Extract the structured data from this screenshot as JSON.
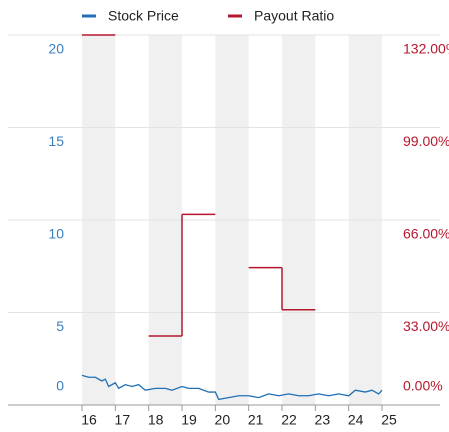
{
  "chart_data": {
    "type": "line",
    "xlim": [
      16,
      25
    ],
    "xticks": [
      16,
      17,
      18,
      19,
      20,
      21,
      22,
      23,
      24,
      25
    ],
    "ylim": [
      0,
      20
    ],
    "yticks": [
      20,
      15,
      10,
      5,
      0
    ],
    "y2lim": [
      0,
      132
    ],
    "y2ticks": [
      {
        "value": 132,
        "label": "132.00%"
      },
      {
        "value": 99,
        "label": "99.00%"
      },
      {
        "value": 66,
        "label": "66.00%"
      },
      {
        "value": 33,
        "label": "33.00%"
      },
      {
        "value": 0,
        "label": "0.00%"
      }
    ],
    "grid": true,
    "legend": "top",
    "series": [
      {
        "name": "Stock Price",
        "color": "#1f6fb4",
        "x": [
          16.0,
          16.2,
          16.4,
          16.6,
          16.7,
          16.8,
          17.0,
          17.1,
          17.3,
          17.5,
          17.7,
          17.9,
          18.2,
          18.5,
          18.7,
          19.0,
          19.2,
          19.5,
          19.8,
          20.0,
          20.1,
          20.4,
          20.7,
          21.0,
          21.3,
          21.6,
          21.9,
          22.2,
          22.5,
          22.8,
          23.1,
          23.4,
          23.7,
          24.0,
          24.2,
          24.5,
          24.7,
          24.9,
          25.0
        ],
        "values": [
          1.6,
          1.5,
          1.5,
          1.3,
          1.4,
          1.0,
          1.2,
          0.9,
          1.1,
          1.0,
          1.1,
          0.8,
          0.9,
          0.9,
          0.8,
          1.0,
          0.9,
          0.9,
          0.7,
          0.7,
          0.3,
          0.4,
          0.5,
          0.5,
          0.4,
          0.6,
          0.5,
          0.6,
          0.5,
          0.5,
          0.6,
          0.5,
          0.6,
          0.5,
          0.8,
          0.7,
          0.8,
          0.6,
          0.8
        ]
      },
      {
        "name": "Payout Ratio",
        "color": "#b5172d",
        "axis": "y2",
        "step": true,
        "x": [
          16,
          17,
          18,
          19,
          20,
          21,
          22,
          23,
          24
        ],
        "values": [
          132,
          null,
          24.6,
          68,
          null,
          49,
          34,
          null,
          null
        ]
      }
    ]
  }
}
